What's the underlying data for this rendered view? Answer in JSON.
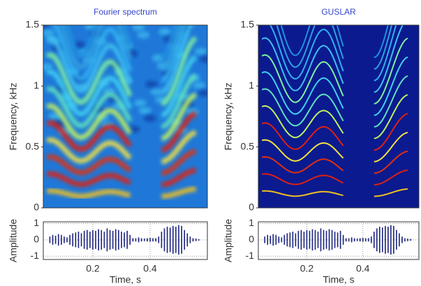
{
  "chart_data": [
    {
      "type": "heatmap",
      "title": "Fourier spectrum",
      "ylabel": "Frequency, kHz",
      "ylim": [
        0,
        1.5
      ],
      "yticks": [
        0,
        0.5,
        1,
        1.5
      ],
      "xlim": [
        0.027,
        0.6
      ],
      "style": "smooth"
    },
    {
      "type": "heatmap",
      "title": "GUSLAR",
      "ylabel": "Frequency, kHz",
      "ylim": [
        0,
        1.5
      ],
      "yticks": [
        0,
        0.5,
        1,
        1.5
      ],
      "xlim": [
        0.027,
        0.6
      ],
      "style": "sharp"
    },
    {
      "type": "waveform",
      "ylabel": "Amplitude",
      "xlabel": "Time, s",
      "xlim": [
        0.027,
        0.6
      ],
      "xticks": [
        0.2,
        0.4
      ],
      "ylim": [
        -1.2,
        1.1
      ],
      "yticks": [
        -1,
        0,
        1
      ],
      "grid": true,
      "color": "#1a237e",
      "x": [
        0.05,
        0.06,
        0.07,
        0.08,
        0.09,
        0.1,
        0.11,
        0.12,
        0.13,
        0.14,
        0.15,
        0.16,
        0.17,
        0.18,
        0.19,
        0.2,
        0.21,
        0.22,
        0.23,
        0.24,
        0.25,
        0.26,
        0.27,
        0.28,
        0.29,
        0.3,
        0.31,
        0.32,
        0.33,
        0.34,
        0.35,
        0.36,
        0.37,
        0.38,
        0.39,
        0.4,
        0.41,
        0.42,
        0.43,
        0.44,
        0.45,
        0.46,
        0.47,
        0.48,
        0.49,
        0.5,
        0.51,
        0.52,
        0.53,
        0.54,
        0.55,
        0.56,
        0.57
      ],
      "values": [
        0.2,
        0.3,
        0.25,
        0.35,
        0.3,
        0.2,
        0.15,
        0.3,
        0.4,
        0.45,
        0.5,
        0.4,
        0.55,
        0.6,
        0.5,
        0.6,
        0.55,
        0.65,
        0.6,
        0.5,
        0.7,
        0.6,
        0.55,
        0.65,
        0.6,
        0.5,
        0.45,
        0.55,
        0.3,
        0.1,
        0.1,
        0.15,
        0.1,
        0.08,
        0.1,
        0.12,
        0.1,
        0.1,
        0.2,
        0.5,
        0.7,
        0.8,
        0.75,
        0.85,
        0.8,
        0.9,
        0.85,
        0.6,
        0.4,
        0.2,
        0.1,
        0.08,
        0.05
      ]
    },
    {
      "type": "waveform",
      "ylabel": "Amplitude",
      "xlabel": "Time, s",
      "xlim": [
        0.027,
        0.6
      ],
      "xticks": [
        0.2,
        0.4
      ],
      "ylim": [
        -1.2,
        1.1
      ],
      "yticks": [
        -1,
        0,
        1
      ],
      "grid": true,
      "color": "#1a237e",
      "x": [
        0.05,
        0.06,
        0.07,
        0.08,
        0.09,
        0.1,
        0.11,
        0.12,
        0.13,
        0.14,
        0.15,
        0.16,
        0.17,
        0.18,
        0.19,
        0.2,
        0.21,
        0.22,
        0.23,
        0.24,
        0.25,
        0.26,
        0.27,
        0.28,
        0.29,
        0.3,
        0.31,
        0.32,
        0.33,
        0.34,
        0.35,
        0.36,
        0.37,
        0.38,
        0.39,
        0.4,
        0.41,
        0.42,
        0.43,
        0.44,
        0.45,
        0.46,
        0.47,
        0.48,
        0.49,
        0.5,
        0.51,
        0.52,
        0.53,
        0.54,
        0.55,
        0.56,
        0.57
      ],
      "values": [
        0.2,
        0.3,
        0.25,
        0.35,
        0.3,
        0.2,
        0.15,
        0.3,
        0.4,
        0.45,
        0.5,
        0.4,
        0.55,
        0.6,
        0.5,
        0.6,
        0.55,
        0.65,
        0.6,
        0.5,
        0.7,
        0.6,
        0.55,
        0.65,
        0.6,
        0.5,
        0.45,
        0.55,
        0.3,
        0.1,
        0.1,
        0.15,
        0.1,
        0.08,
        0.1,
        0.12,
        0.1,
        0.1,
        0.2,
        0.5,
        0.7,
        0.8,
        0.75,
        0.85,
        0.8,
        0.9,
        0.85,
        0.6,
        0.4,
        0.2,
        0.1,
        0.08,
        0.05
      ]
    }
  ]
}
